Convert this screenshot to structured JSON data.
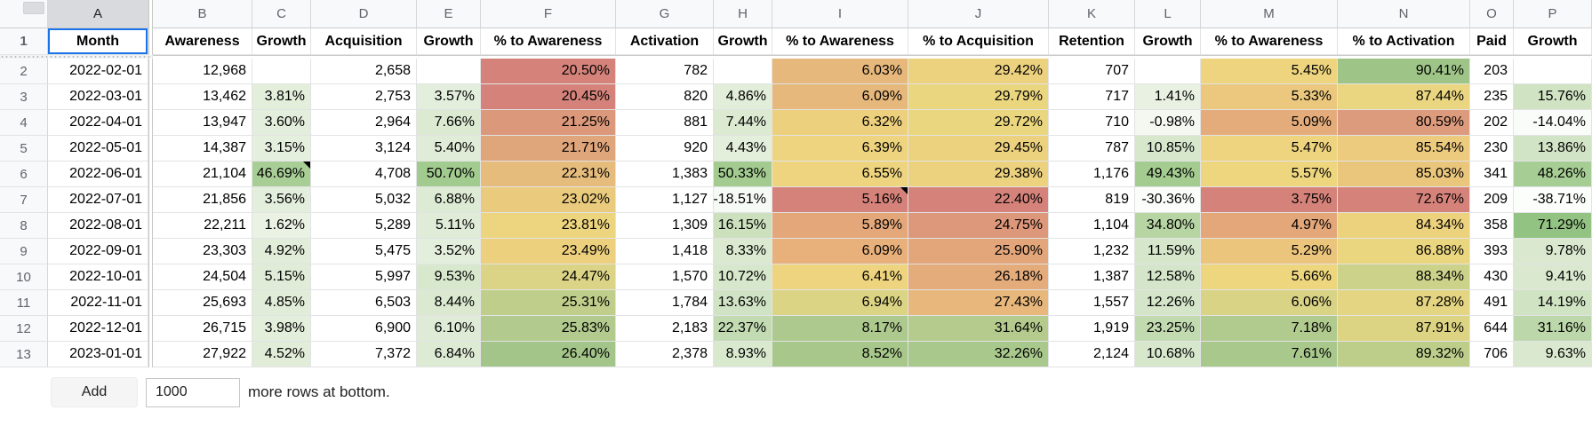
{
  "colors": {
    "selection_border": "#1a73e8",
    "grid_line": "#e2e3e4",
    "header_strip_bg": "#f8f9fa"
  },
  "sheet": {
    "column_letters": [
      "A",
      "B",
      "C",
      "D",
      "E",
      "F",
      "G",
      "H",
      "I",
      "J",
      "K",
      "L",
      "M",
      "N",
      "O",
      "P"
    ],
    "selected_cell": "A1",
    "header_row": [
      "Month",
      "Awareness",
      "Growth",
      "Acquisition",
      "Growth",
      "% to Awareness",
      "Activation",
      "Growth",
      "% to Awareness",
      "% to Acquisition",
      "Retention",
      "Growth",
      "% to Awareness",
      "% to Activation",
      "Paid",
      "Growth"
    ],
    "rows": [
      {
        "n": "2",
        "cells": [
          {
            "v": "2022-02-01"
          },
          {
            "v": "12,968"
          },
          {
            "v": ""
          },
          {
            "v": "2,658"
          },
          {
            "v": ""
          },
          {
            "v": "20.50%",
            "bg": "#d5837a"
          },
          {
            "v": "782"
          },
          {
            "v": ""
          },
          {
            "v": "6.03%",
            "bg": "#e7b87c"
          },
          {
            "v": "29.42%",
            "bg": "#ecd17e"
          },
          {
            "v": "707"
          },
          {
            "v": ""
          },
          {
            "v": "5.45%",
            "bg": "#eed47e"
          },
          {
            "v": "90.41%",
            "bg": "#9fc487"
          },
          {
            "v": "203"
          },
          {
            "v": ""
          }
        ]
      },
      {
        "n": "3",
        "cells": [
          {
            "v": "2022-03-01"
          },
          {
            "v": "13,462"
          },
          {
            "v": "3.81%",
            "bg": "#e3eedb"
          },
          {
            "v": "2,753"
          },
          {
            "v": "3.57%",
            "bg": "#e4eedc"
          },
          {
            "v": "20.45%",
            "bg": "#d5837a"
          },
          {
            "v": "820"
          },
          {
            "v": "4.86%",
            "bg": "#e2edda"
          },
          {
            "v": "6.09%",
            "bg": "#e7b87c"
          },
          {
            "v": "29.79%",
            "bg": "#ead67f"
          },
          {
            "v": "717"
          },
          {
            "v": "1.41%",
            "bg": "#e9f1e3"
          },
          {
            "v": "5.33%",
            "bg": "#ebc87d"
          },
          {
            "v": "87.44%",
            "bg": "#ead680"
          },
          {
            "v": "235"
          },
          {
            "v": "15.76%",
            "bg": "#d0e3c3"
          }
        ]
      },
      {
        "n": "4",
        "cells": [
          {
            "v": "2022-04-01"
          },
          {
            "v": "13,947"
          },
          {
            "v": "3.60%",
            "bg": "#e4eedc"
          },
          {
            "v": "2,964"
          },
          {
            "v": "7.66%",
            "bg": "#dcead2"
          },
          {
            "v": "21.25%",
            "bg": "#dc987b"
          },
          {
            "v": "881"
          },
          {
            "v": "7.44%",
            "bg": "#dcead2"
          },
          {
            "v": "6.32%",
            "bg": "#edd07e"
          },
          {
            "v": "29.72%",
            "bg": "#ead67f"
          },
          {
            "v": "710"
          },
          {
            "v": "-0.98%",
            "bg": "#f4f8f1"
          },
          {
            "v": "5.09%",
            "bg": "#e5ac7b"
          },
          {
            "v": "80.59%",
            "bg": "#dc9b7c"
          },
          {
            "v": "202"
          },
          {
            "v": "-14.04%",
            "bg": "#fafcf9"
          }
        ]
      },
      {
        "n": "5",
        "cells": [
          {
            "v": "2022-05-01"
          },
          {
            "v": "14,387"
          },
          {
            "v": "3.15%",
            "bg": "#e5efde"
          },
          {
            "v": "3,124"
          },
          {
            "v": "5.40%",
            "bg": "#e0ecd7"
          },
          {
            "v": "21.71%",
            "bg": "#e0a67b"
          },
          {
            "v": "920"
          },
          {
            "v": "4.43%",
            "bg": "#e3eedb"
          },
          {
            "v": "6.39%",
            "bg": "#eed47e"
          },
          {
            "v": "29.45%",
            "bg": "#ecd17e"
          },
          {
            "v": "787"
          },
          {
            "v": "10.85%",
            "bg": "#d6e7cc"
          },
          {
            "v": "5.47%",
            "bg": "#eed47e"
          },
          {
            "v": "85.54%",
            "bg": "#ecca7e"
          },
          {
            "v": "230"
          },
          {
            "v": "13.86%",
            "bg": "#d2e4c6"
          }
        ]
      },
      {
        "n": "6",
        "cells": [
          {
            "v": "2022-06-01"
          },
          {
            "v": "21,104"
          },
          {
            "v": "46.69%",
            "bg": "#a8ce95",
            "note": true
          },
          {
            "v": "4,708"
          },
          {
            "v": "50.70%",
            "bg": "#a2cb8f"
          },
          {
            "v": "22.31%",
            "bg": "#e6bc7d"
          },
          {
            "v": "1,383"
          },
          {
            "v": "50.33%",
            "bg": "#a3cb90"
          },
          {
            "v": "6.55%",
            "bg": "#eed47e"
          },
          {
            "v": "29.38%",
            "bg": "#ecd17e"
          },
          {
            "v": "1,176"
          },
          {
            "v": "49.43%",
            "bg": "#a4cc91"
          },
          {
            "v": "5.57%",
            "bg": "#eed67f"
          },
          {
            "v": "85.03%",
            "bg": "#eac67d"
          },
          {
            "v": "341"
          },
          {
            "v": "48.26%",
            "bg": "#a6cd93"
          }
        ]
      },
      {
        "n": "7",
        "cells": [
          {
            "v": "2022-07-01"
          },
          {
            "v": "21,856"
          },
          {
            "v": "3.56%",
            "bg": "#e4eedc"
          },
          {
            "v": "5,032"
          },
          {
            "v": "6.88%",
            "bg": "#deebd4"
          },
          {
            "v": "23.02%",
            "bg": "#eacb7d"
          },
          {
            "v": "1,127"
          },
          {
            "v": "-18.51%",
            "bg": "#f6faf4"
          },
          {
            "v": "5.16%",
            "bg": "#d5837a",
            "note": true
          },
          {
            "v": "22.40%",
            "bg": "#d5837a"
          },
          {
            "v": "819"
          },
          {
            "v": "-30.36%",
            "bg": "#fbfdfb"
          },
          {
            "v": "3.75%",
            "bg": "#d5837a"
          },
          {
            "v": "72.67%",
            "bg": "#d5837a"
          },
          {
            "v": "209"
          },
          {
            "v": "-38.71%",
            "bg": "#fcfefc"
          }
        ]
      },
      {
        "n": "8",
        "cells": [
          {
            "v": "2022-08-01"
          },
          {
            "v": "22,211"
          },
          {
            "v": "1.62%",
            "bg": "#eaf2e4"
          },
          {
            "v": "5,289"
          },
          {
            "v": "5.11%",
            "bg": "#e1ecd8"
          },
          {
            "v": "23.81%",
            "bg": "#edd57f"
          },
          {
            "v": "1,309"
          },
          {
            "v": "16.15%",
            "bg": "#cce0bd"
          },
          {
            "v": "5.89%",
            "bg": "#e3a77a"
          },
          {
            "v": "24.75%",
            "bg": "#dd977b"
          },
          {
            "v": "1,104"
          },
          {
            "v": "34.80%",
            "bg": "#b7d4a3"
          },
          {
            "v": "4.97%",
            "bg": "#e4a77a"
          },
          {
            "v": "84.34%",
            "bg": "#edd27e"
          },
          {
            "v": "358"
          },
          {
            "v": "71.29%",
            "bg": "#93c382"
          }
        ]
      },
      {
        "n": "9",
        "cells": [
          {
            "v": "2022-09-01"
          },
          {
            "v": "23,303"
          },
          {
            "v": "4.92%",
            "bg": "#e1edd8"
          },
          {
            "v": "5,475"
          },
          {
            "v": "3.52%",
            "bg": "#e4eedc"
          },
          {
            "v": "23.49%",
            "bg": "#edd07e"
          },
          {
            "v": "1,418"
          },
          {
            "v": "8.33%",
            "bg": "#dae9cf"
          },
          {
            "v": "6.09%",
            "bg": "#e8b07b"
          },
          {
            "v": "25.90%",
            "bg": "#e2a67a"
          },
          {
            "v": "1,232"
          },
          {
            "v": "11.59%",
            "bg": "#d5e6ca"
          },
          {
            "v": "5.29%",
            "bg": "#ecc57d"
          },
          {
            "v": "86.88%",
            "bg": "#ebd680"
          },
          {
            "v": "393"
          },
          {
            "v": "9.78%",
            "bg": "#d9e8ce"
          }
        ]
      },
      {
        "n": "10",
        "cells": [
          {
            "v": "2022-10-01"
          },
          {
            "v": "24,504"
          },
          {
            "v": "5.15%",
            "bg": "#e0ecd7"
          },
          {
            "v": "5,997"
          },
          {
            "v": "9.53%",
            "bg": "#d8e8cd"
          },
          {
            "v": "24.47%",
            "bg": "#dbd385"
          },
          {
            "v": "1,570"
          },
          {
            "v": "10.72%",
            "bg": "#d6e7cb"
          },
          {
            "v": "6.41%",
            "bg": "#eed47e"
          },
          {
            "v": "26.18%",
            "bg": "#e4ab7b"
          },
          {
            "v": "1,387"
          },
          {
            "v": "12.58%",
            "bg": "#d4e5c9"
          },
          {
            "v": "5.66%",
            "bg": "#edd67e"
          },
          {
            "v": "88.34%",
            "bg": "#ccd289"
          },
          {
            "v": "430"
          },
          {
            "v": "9.41%",
            "bg": "#d9e8ce"
          }
        ]
      },
      {
        "n": "11",
        "cells": [
          {
            "v": "2022-11-01"
          },
          {
            "v": "25,693"
          },
          {
            "v": "4.85%",
            "bg": "#e1edd8"
          },
          {
            "v": "6,503"
          },
          {
            "v": "8.44%",
            "bg": "#dae9cf"
          },
          {
            "v": "25.31%",
            "bg": "#bfce8a"
          },
          {
            "v": "1,784"
          },
          {
            "v": "13.63%",
            "bg": "#d1e3c5"
          },
          {
            "v": "6.94%",
            "bg": "#dcd485"
          },
          {
            "v": "27.43%",
            "bg": "#e7b77c"
          },
          {
            "v": "1,557"
          },
          {
            "v": "12.26%",
            "bg": "#d4e5c9"
          },
          {
            "v": "6.06%",
            "bg": "#d9d385"
          },
          {
            "v": "87.28%",
            "bg": "#e4d582"
          },
          {
            "v": "491"
          },
          {
            "v": "14.19%",
            "bg": "#d0e3c3"
          }
        ]
      },
      {
        "n": "12",
        "cells": [
          {
            "v": "2022-12-01"
          },
          {
            "v": "26,715"
          },
          {
            "v": "3.98%",
            "bg": "#e3eedb"
          },
          {
            "v": "6,900"
          },
          {
            "v": "6.10%",
            "bg": "#dfebd6"
          },
          {
            "v": "25.83%",
            "bg": "#b2ca8e"
          },
          {
            "v": "2,183"
          },
          {
            "v": "22.37%",
            "bg": "#c3dbb2"
          },
          {
            "v": "8.17%",
            "bg": "#aec98e"
          },
          {
            "v": "31.64%",
            "bg": "#b4cb8d"
          },
          {
            "v": "1,919"
          },
          {
            "v": "23.25%",
            "bg": "#c2dab0"
          },
          {
            "v": "7.18%",
            "bg": "#b1ca8e"
          },
          {
            "v": "87.91%",
            "bg": "#ddd483"
          },
          {
            "v": "644"
          },
          {
            "v": "31.16%",
            "bg": "#bcd7a9"
          }
        ]
      },
      {
        "n": "13",
        "cells": [
          {
            "v": "2023-01-01"
          },
          {
            "v": "27,922"
          },
          {
            "v": "4.52%",
            "bg": "#e2edd9"
          },
          {
            "v": "7,372"
          },
          {
            "v": "6.84%",
            "bg": "#deebd4"
          },
          {
            "v": "26.40%",
            "bg": "#a4c589"
          },
          {
            "v": "2,378"
          },
          {
            "v": "8.93%",
            "bg": "#d9e9ce"
          },
          {
            "v": "8.52%",
            "bg": "#a7c78b"
          },
          {
            "v": "32.26%",
            "bg": "#a9c88c"
          },
          {
            "v": "2,124"
          },
          {
            "v": "10.68%",
            "bg": "#d6e7cc"
          },
          {
            "v": "7.61%",
            "bg": "#a9c88c"
          },
          {
            "v": "89.32%",
            "bg": "#bdce8b"
          },
          {
            "v": "706"
          },
          {
            "v": "9.63%",
            "bg": "#d9e8ce"
          }
        ]
      }
    ]
  },
  "footer": {
    "add_label": "Add",
    "rows_value": "1000",
    "text": "more rows at bottom."
  }
}
